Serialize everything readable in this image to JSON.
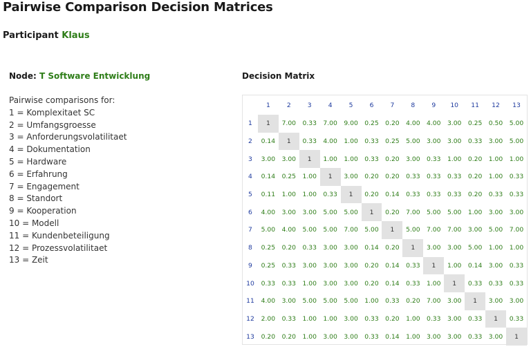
{
  "page": {
    "title": "Pairwise Comparison Decision Matrices"
  },
  "participant": {
    "label": "Participant",
    "name": "Klaus"
  },
  "node": {
    "label": "Node:",
    "name": "T Software Entwicklung"
  },
  "criteria": {
    "intro": "Pairwise comparisons for:",
    "items": [
      "1 = Komplexitaet SC",
      "2 = Umfangsgroesse",
      "3 = Anforderungsvolatilitaet",
      "4 = Dokumentation",
      "5 = Hardware",
      "6 = Erfahrung",
      "7 = Engagement",
      "8 = Standort",
      "9 = Kooperation",
      "10 = Modell",
      "11 = Kundenbeteiligung",
      "12 = Prozessvolatilitaet",
      "13 = Zeit"
    ]
  },
  "matrix": {
    "title": "Decision Matrix",
    "headers": [
      "1",
      "2",
      "3",
      "4",
      "5",
      "6",
      "7",
      "8",
      "9",
      "10",
      "11",
      "12",
      "13"
    ],
    "rows": [
      {
        "label": "1",
        "cells": [
          "1",
          "7.00",
          "0.33",
          "7.00",
          "9.00",
          "0.25",
          "0.20",
          "4.00",
          "4.00",
          "3.00",
          "0.25",
          "0.50",
          "5.00"
        ]
      },
      {
        "label": "2",
        "cells": [
          "0.14",
          "1",
          "0.33",
          "4.00",
          "1.00",
          "0.33",
          "0.25",
          "5.00",
          "3.00",
          "3.00",
          "0.33",
          "3.00",
          "5.00"
        ]
      },
      {
        "label": "3",
        "cells": [
          "3.00",
          "3.00",
          "1",
          "1.00",
          "1.00",
          "0.33",
          "0.20",
          "3.00",
          "0.33",
          "1.00",
          "0.20",
          "1.00",
          "1.00"
        ]
      },
      {
        "label": "4",
        "cells": [
          "0.14",
          "0.25",
          "1.00",
          "1",
          "3.00",
          "0.20",
          "0.20",
          "0.33",
          "0.33",
          "0.33",
          "0.20",
          "1.00",
          "0.33"
        ]
      },
      {
        "label": "5",
        "cells": [
          "0.11",
          "1.00",
          "1.00",
          "0.33",
          "1",
          "0.20",
          "0.14",
          "0.33",
          "0.33",
          "0.33",
          "0.20",
          "0.33",
          "0.33"
        ]
      },
      {
        "label": "6",
        "cells": [
          "4.00",
          "3.00",
          "3.00",
          "5.00",
          "5.00",
          "1",
          "0.20",
          "7.00",
          "5.00",
          "5.00",
          "1.00",
          "3.00",
          "3.00"
        ]
      },
      {
        "label": "7",
        "cells": [
          "5.00",
          "4.00",
          "5.00",
          "5.00",
          "7.00",
          "5.00",
          "1",
          "5.00",
          "7.00",
          "7.00",
          "3.00",
          "5.00",
          "7.00"
        ]
      },
      {
        "label": "8",
        "cells": [
          "0.25",
          "0.20",
          "0.33",
          "3.00",
          "3.00",
          "0.14",
          "0.20",
          "1",
          "3.00",
          "3.00",
          "5.00",
          "1.00",
          "1.00"
        ]
      },
      {
        "label": "9",
        "cells": [
          "0.25",
          "0.33",
          "3.00",
          "3.00",
          "3.00",
          "0.20",
          "0.14",
          "0.33",
          "1",
          "1.00",
          "0.14",
          "3.00",
          "0.33"
        ]
      },
      {
        "label": "10",
        "cells": [
          "0.33",
          "0.33",
          "1.00",
          "3.00",
          "3.00",
          "0.20",
          "0.14",
          "0.33",
          "1.00",
          "1",
          "0.33",
          "0.33",
          "0.33"
        ]
      },
      {
        "label": "11",
        "cells": [
          "4.00",
          "3.00",
          "5.00",
          "5.00",
          "5.00",
          "1.00",
          "0.33",
          "0.20",
          "7.00",
          "3.00",
          "1",
          "3.00",
          "3.00"
        ]
      },
      {
        "label": "12",
        "cells": [
          "2.00",
          "0.33",
          "1.00",
          "1.00",
          "3.00",
          "0.33",
          "0.20",
          "1.00",
          "0.33",
          "3.00",
          "0.33",
          "1",
          "0.33"
        ]
      },
      {
        "label": "13",
        "cells": [
          "0.20",
          "0.20",
          "1.00",
          "3.00",
          "3.00",
          "0.33",
          "0.14",
          "1.00",
          "3.00",
          "3.00",
          "0.33",
          "3.00",
          "1"
        ]
      }
    ]
  },
  "colors": {
    "green": "#2e7d18",
    "blue": "#1e3a9e",
    "diagonal": "#e2e2e2"
  }
}
